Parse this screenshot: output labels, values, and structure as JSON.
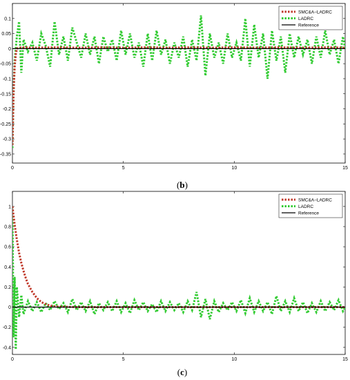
{
  "chart_data": [
    {
      "type": "line",
      "caption_open": "(",
      "caption_letter": "b",
      "caption_close": ")",
      "xlim": [
        0,
        15
      ],
      "ylim": [
        -0.38,
        0.15
      ],
      "xticks": [
        0,
        5,
        10,
        15
      ],
      "yticks": [
        0.1,
        0.05,
        0,
        -0.05,
        -0.1,
        -0.15,
        -0.2,
        -0.25,
        -0.3,
        -0.35
      ],
      "ytick_labels": [
        "0.1",
        "0.05",
        "0",
        "-0.05",
        "-0.1",
        "-0.15",
        "-0.2",
        "-0.25",
        "-0.3",
        "-0.35"
      ],
      "grid": false,
      "legend_position": "top-right",
      "series": [
        {
          "name": "SMC&A−LADRC",
          "color": "#c0392b",
          "style": "dotted",
          "x": [
            0,
            0.05,
            0.1,
            0.15,
            0.2,
            0.3,
            0.5,
            1,
            2,
            3,
            4,
            5,
            6,
            7,
            8,
            9,
            10,
            11,
            12,
            13,
            14,
            15
          ],
          "y": [
            -0.32,
            -0.15,
            -0.06,
            -0.02,
            0.0,
            0.003,
            0.004,
            0.003,
            0.004,
            0.003,
            0.004,
            0.003,
            0.004,
            0.003,
            0.004,
            0.003,
            0.004,
            0.003,
            0.004,
            0.003,
            0.004,
            0.003
          ]
        },
        {
          "name": "LADRC",
          "color": "#33cc33",
          "style": "dotted",
          "x": [
            0,
            0.05,
            0.1,
            0.2,
            0.3,
            0.4,
            0.5,
            0.7,
            0.9,
            1.1,
            1.3,
            1.5,
            1.7,
            1.9,
            2.1,
            2.3,
            2.5,
            2.7,
            2.9,
            3.1,
            3.3,
            3.5,
            3.7,
            3.9,
            4.1,
            4.3,
            4.5,
            4.7,
            4.9,
            5.1,
            5.3,
            5.5,
            5.7,
            5.9,
            6.1,
            6.3,
            6.5,
            6.7,
            6.9,
            7.1,
            7.3,
            7.5,
            7.7,
            7.9,
            8.1,
            8.3,
            8.5,
            8.7,
            8.9,
            9.1,
            9.3,
            9.5,
            9.7,
            9.9,
            10.1,
            10.3,
            10.5,
            10.7,
            10.9,
            11.1,
            11.3,
            11.5,
            11.7,
            11.9,
            12.1,
            12.3,
            12.5,
            12.7,
            12.9,
            13.1,
            13.3,
            13.5,
            13.7,
            13.9,
            14.1,
            14.3,
            14.5,
            14.7,
            14.9,
            15
          ],
          "y": [
            -0.33,
            -0.15,
            -0.04,
            0.04,
            0.09,
            -0.08,
            0.03,
            -0.01,
            0.02,
            -0.04,
            0.05,
            0.01,
            -0.06,
            0.09,
            -0.02,
            0.04,
            -0.04,
            0.07,
            0.02,
            -0.03,
            0.05,
            -0.02,
            0.04,
            -0.05,
            0.04,
            -0.01,
            0.03,
            -0.04,
            0.06,
            -0.02,
            0.05,
            -0.03,
            0.02,
            -0.06,
            0.05,
            -0.04,
            0.06,
            -0.02,
            0.03,
            -0.05,
            0.02,
            -0.03,
            0.04,
            -0.06,
            0.03,
            -0.04,
            0.11,
            -0.09,
            0.05,
            -0.03,
            0.02,
            -0.05,
            0.05,
            -0.03,
            0.02,
            -0.04,
            0.1,
            -0.06,
            0.08,
            -0.03,
            0.05,
            -0.1,
            0.06,
            -0.04,
            0.04,
            -0.08,
            0.05,
            -0.03,
            0.04,
            -0.02,
            0.03,
            -0.05,
            0.04,
            -0.03,
            0.06,
            -0.02,
            0.03,
            -0.05,
            0.04,
            0.0
          ]
        },
        {
          "name": "Reference",
          "color": "#000000",
          "style": "solid",
          "x": [
            0,
            15
          ],
          "y": [
            0,
            0
          ]
        }
      ]
    },
    {
      "type": "line",
      "caption_open": "(",
      "caption_letter": "c",
      "caption_close": ")",
      "xlim": [
        0,
        15
      ],
      "ylim": [
        -0.47,
        1.15
      ],
      "xticks": [
        0,
        5,
        10,
        15
      ],
      "yticks": [
        1,
        0.8,
        0.6,
        0.4,
        0.2,
        0,
        -0.2,
        -0.4
      ],
      "ytick_labels": [
        "1",
        "0.8",
        "0.6",
        "0.4",
        "0.2",
        "0",
        "-0.2",
        "-0.4"
      ],
      "grid": false,
      "legend_position": "top-right",
      "series": [
        {
          "name": "SMC&A−LADRC",
          "color": "#c0392b",
          "style": "dotted",
          "x": [
            0,
            0.1,
            0.2,
            0.3,
            0.4,
            0.5,
            0.6,
            0.7,
            0.8,
            0.9,
            1.0,
            1.1,
            1.2,
            1.3,
            1.4,
            1.5,
            1.7,
            2.0,
            3,
            4,
            5,
            6,
            7,
            8,
            9,
            10,
            11,
            12,
            13,
            14,
            15
          ],
          "y": [
            1.0,
            0.82,
            0.67,
            0.54,
            0.44,
            0.36,
            0.29,
            0.23,
            0.19,
            0.15,
            0.12,
            0.09,
            0.07,
            0.05,
            0.04,
            0.03,
            0.015,
            0.005,
            0.0,
            0.0,
            0.0,
            0.0,
            0.0,
            0.0,
            0.0,
            0.0,
            0.0,
            0.0,
            0.0,
            0.0,
            0.0
          ]
        },
        {
          "name": "LADRC",
          "color": "#33cc33",
          "style": "dotted",
          "x": [
            0,
            0.05,
            0.1,
            0.15,
            0.2,
            0.3,
            0.4,
            0.5,
            0.7,
            0.9,
            1.1,
            1.3,
            1.5,
            1.7,
            1.9,
            2.1,
            2.3,
            2.5,
            2.7,
            2.9,
            3.1,
            3.3,
            3.5,
            3.7,
            3.9,
            4.1,
            4.3,
            4.5,
            4.7,
            4.9,
            5.1,
            5.3,
            5.5,
            5.7,
            5.9,
            6.1,
            6.3,
            6.5,
            6.7,
            6.9,
            7.1,
            7.3,
            7.5,
            7.7,
            7.9,
            8.1,
            8.3,
            8.5,
            8.7,
            8.9,
            9.1,
            9.3,
            9.5,
            9.7,
            9.9,
            10.1,
            10.3,
            10.5,
            10.7,
            10.9,
            11.1,
            11.3,
            11.5,
            11.7,
            11.9,
            12.1,
            12.3,
            12.5,
            12.7,
            12.9,
            13.1,
            13.3,
            13.5,
            13.7,
            13.9,
            14.1,
            14.3,
            14.5,
            14.7,
            14.9,
            15
          ],
          "y": [
            1.0,
            -0.3,
            0.3,
            -0.42,
            0.2,
            -0.1,
            0.12,
            -0.07,
            0.06,
            -0.04,
            0.05,
            -0.05,
            0.04,
            -0.03,
            0.06,
            -0.02,
            0.04,
            -0.05,
            0.08,
            -0.03,
            0.05,
            -0.04,
            0.06,
            -0.07,
            0.04,
            -0.03,
            0.05,
            -0.04,
            0.06,
            -0.05,
            0.04,
            -0.06,
            0.07,
            -0.03,
            0.05,
            -0.04,
            0.03,
            -0.05,
            0.06,
            -0.04,
            0.05,
            -0.03,
            0.04,
            -0.05,
            0.06,
            -0.03,
            0.15,
            -0.1,
            0.08,
            -0.12,
            0.06,
            -0.05,
            0.04,
            -0.03,
            0.05,
            -0.04,
            0.07,
            -0.06,
            0.09,
            -0.05,
            0.06,
            -0.04,
            0.05,
            -0.07,
            0.11,
            -0.04,
            0.06,
            -0.05,
            0.09,
            -0.04,
            0.05,
            -0.06,
            0.04,
            -0.05,
            0.06,
            -0.04,
            0.05,
            -0.03,
            0.07,
            -0.04,
            0.0
          ]
        },
        {
          "name": "Reference",
          "color": "#000000",
          "style": "solid",
          "x": [
            0,
            15
          ],
          "y": [
            0,
            0
          ]
        }
      ]
    }
  ]
}
